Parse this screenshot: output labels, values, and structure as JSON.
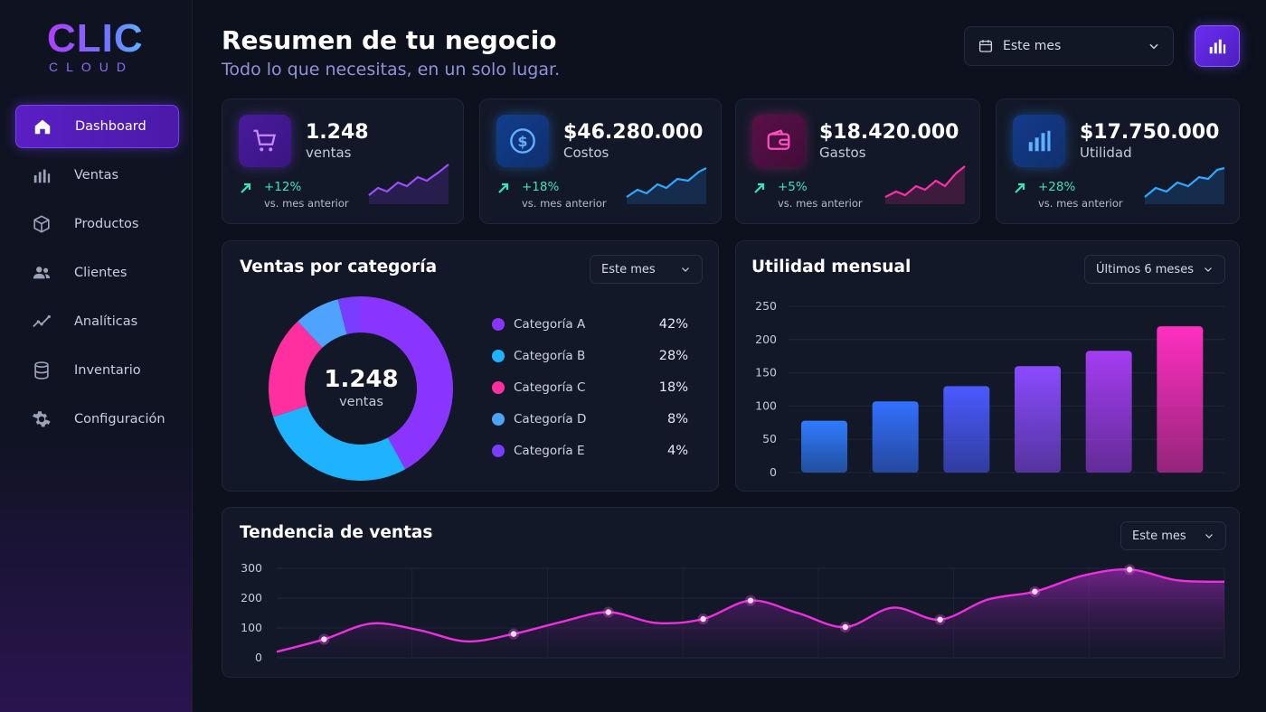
{
  "brand": {
    "main": "CLIC",
    "sub": "CLOUD"
  },
  "sidebar": {
    "items": [
      {
        "label": "Dashboard",
        "icon": "home-icon",
        "active": true
      },
      {
        "label": "Ventas",
        "icon": "bar-chart-icon"
      },
      {
        "label": "Productos",
        "icon": "box-icon"
      },
      {
        "label": "Clientes",
        "icon": "users-icon"
      },
      {
        "label": "Analíticas",
        "icon": "trend-line-icon"
      },
      {
        "label": "Inventario",
        "icon": "database-icon"
      },
      {
        "label": "Configuración",
        "icon": "gear-icon"
      }
    ]
  },
  "header": {
    "title": "Resumen de tu negocio",
    "subtitle": "Todo lo que necesitas, en un solo lugar.",
    "date_filter": "Este mes"
  },
  "kpis": [
    {
      "value": "1.248",
      "label": "ventas",
      "change": "+12%",
      "compare": "vs. mes anterior",
      "icon": "cart-icon",
      "color": "#8b3dff"
    },
    {
      "value": "$46.280.000",
      "label": "Costos",
      "change": "+18%",
      "compare": "vs. mes anterior",
      "icon": "dollar-icon",
      "color": "#2f8cff"
    },
    {
      "value": "$18.420.000",
      "label": "Gastos",
      "change": "+5%",
      "compare": "vs. mes anterior",
      "icon": "wallet-icon",
      "color": "#ff2fa8"
    },
    {
      "value": "$17.750.000",
      "label": "Utilidad",
      "change": "+28%",
      "compare": "vs. mes anterior",
      "icon": "bar-chart-icon",
      "color": "#2f8cff"
    }
  ],
  "ventas_categoria": {
    "title": "Ventas por categoría",
    "filter": "Este mes",
    "center_value": "1.248",
    "center_label": "ventas",
    "legend": [
      {
        "name": "Categoría A",
        "pct": "42%"
      },
      {
        "name": "Categoría B",
        "pct": "28%"
      },
      {
        "name": "Categoría C",
        "pct": "18%"
      },
      {
        "name": "Categoría D",
        "pct": "8%"
      },
      {
        "name": "Categoría E",
        "pct": "4%"
      }
    ]
  },
  "utilidad_mensual": {
    "title": "Utilidad mensual",
    "filter": "Últimos 6 meses"
  },
  "tendencia": {
    "title": "Tendencia de ventas",
    "filter": "Este mes"
  },
  "chart_data": [
    {
      "type": "pie",
      "categories": [
        "Categoría A",
        "Categoría B",
        "Categoría C",
        "Categoría D",
        "Categoría E"
      ],
      "values": [
        42,
        28,
        18,
        8,
        4
      ],
      "colors": [
        "#8a34ff",
        "#1fb3ff",
        "#ff2fa0",
        "#4da3ff",
        "#7a3cff"
      ]
    },
    {
      "type": "bar",
      "categories": [
        "",
        "",
        "",
        "",
        "",
        ""
      ],
      "values": [
        78,
        107,
        130,
        160,
        183,
        220
      ],
      "ylim": [
        0,
        250
      ],
      "yticks": [
        0,
        50,
        100,
        150,
        200,
        250
      ],
      "colors": [
        "#2f7bff",
        "#3370ff",
        "#4a5aff",
        "#8a4bff",
        "#a43cf2",
        "#ff2fc0"
      ]
    },
    {
      "type": "area",
      "x": [
        0,
        1,
        2,
        3,
        4,
        5,
        6,
        7,
        8,
        9,
        10,
        11,
        12,
        13,
        14,
        15,
        16,
        17,
        18,
        19,
        20
      ],
      "values": [
        20,
        62,
        115,
        93,
        55,
        80,
        120,
        153,
        117,
        130,
        192,
        150,
        103,
        168,
        128,
        195,
        222,
        275,
        296,
        260,
        255
      ],
      "markers": [
        1,
        5,
        7,
        9,
        10,
        12,
        14,
        16,
        18
      ],
      "ylim": [
        0,
        300
      ],
      "yticks": [
        0,
        100,
        200,
        300
      ]
    }
  ]
}
